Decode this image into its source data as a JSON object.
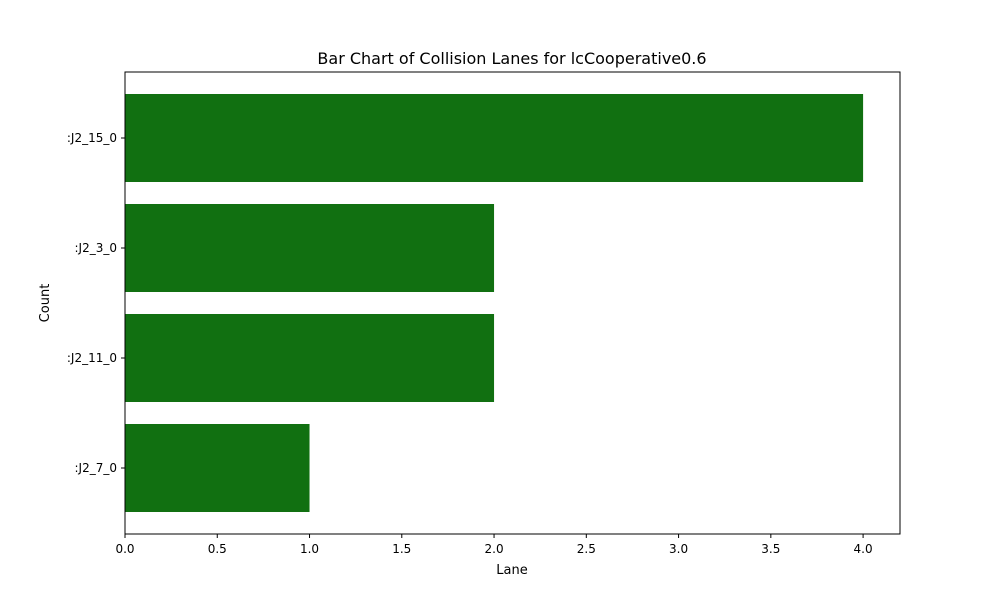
{
  "chart_data": {
    "type": "bar",
    "orientation": "horizontal",
    "title": "Bar Chart of Collision Lanes for lcCooperative0.6",
    "xlabel": "Lane",
    "ylabel": "Count",
    "categories": [
      ":J2_15_0",
      ":J2_3_0",
      ":J2_11_0",
      ":J2_7_0"
    ],
    "values": [
      4,
      2,
      2,
      1
    ],
    "xlim": [
      0,
      4.2
    ],
    "xticks": [
      "0.0",
      "0.5",
      "1.0",
      "1.5",
      "2.0",
      "2.5",
      "3.0",
      "3.5",
      "4.0"
    ],
    "bar_color": "#117011",
    "grid": false,
    "legend": "none"
  }
}
